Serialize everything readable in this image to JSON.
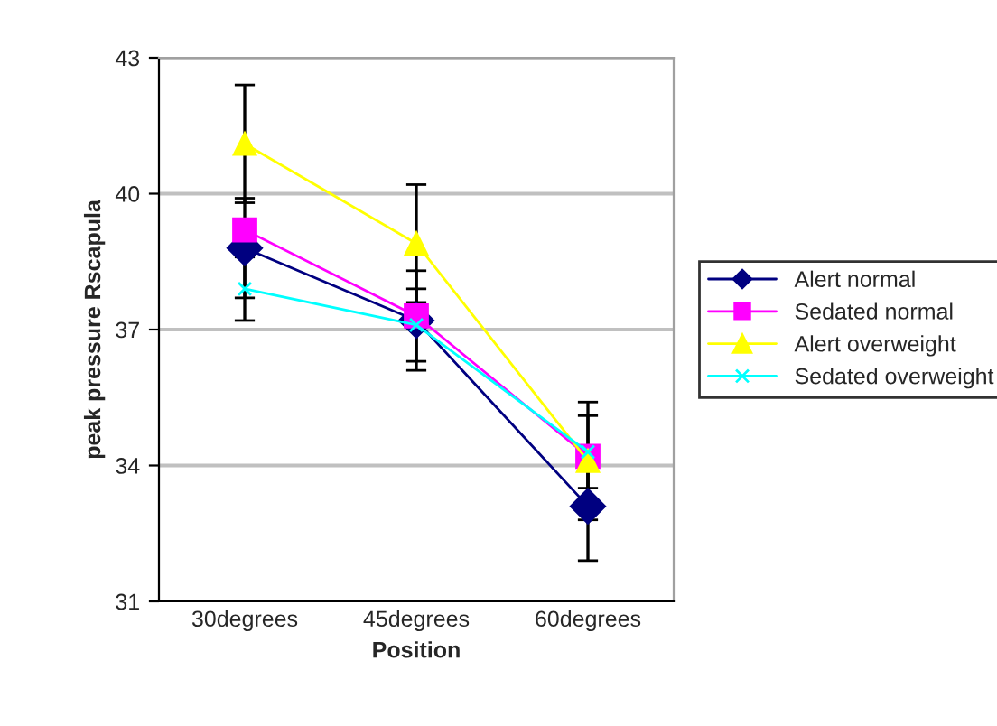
{
  "chart_data": {
    "type": "line",
    "xlabel": "Position",
    "ylabel": "peak pressure Rscapula",
    "categories": [
      "30degrees",
      "45degrees",
      "60degrees"
    ],
    "series": [
      {
        "name": "Alert normal",
        "color": "#000080",
        "marker": "diamond",
        "values": [
          38.8,
          37.2,
          33.1
        ],
        "errors": [
          1.1,
          1.1,
          1.2
        ]
      },
      {
        "name": "Sedated normal",
        "color": "#ff00ff",
        "marker": "square",
        "values": [
          39.2,
          37.3,
          34.2
        ]
      },
      {
        "name": "Alert overweight",
        "color": "#ffff00",
        "marker": "triangle",
        "values": [
          41.1,
          38.9,
          34.1
        ],
        "errors": [
          1.3,
          1.3,
          1.3
        ]
      },
      {
        "name": "Sedated overweight",
        "color": "#00ffff",
        "marker": "cross",
        "values": [
          37.9,
          37.1,
          34.3
        ],
        "errors": [
          0.7,
          0.8,
          0.8
        ]
      }
    ],
    "ylim": [
      31,
      43
    ],
    "yticks": [
      31,
      34,
      37,
      40,
      43
    ],
    "grid": "y",
    "legend": "right"
  }
}
